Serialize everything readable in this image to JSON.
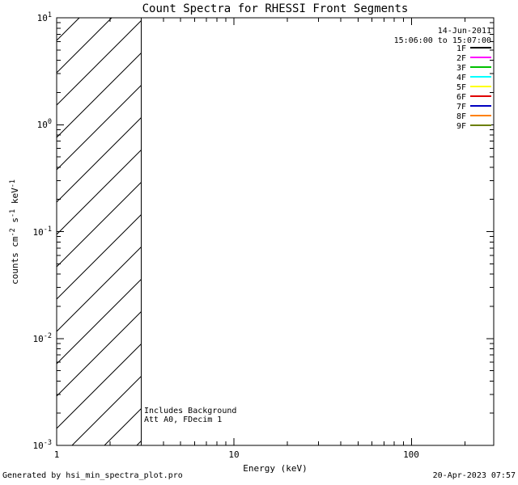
{
  "title": "Count Spectra for RHESSI Front Segments",
  "axes": {
    "x_label": "Energy (keV)",
    "x_ticks": [
      "1",
      "10",
      "100"
    ],
    "y_ticks": [
      {
        "base": "10",
        "exp": "1"
      },
      {
        "base": "10",
        "exp": "0"
      },
      {
        "base": "10",
        "exp": "-1"
      },
      {
        "base": "10",
        "exp": "-2"
      },
      {
        "base": "10",
        "exp": "-3"
      }
    ],
    "y_label_parts": {
      "p0": "counts cm",
      "s0": "-2",
      "p1": " s",
      "s1": "-1",
      "p2": " keV",
      "s2": "-1"
    }
  },
  "legend": {
    "date": "14-Jun-2011",
    "time_range": "15:06:00 to 15:07:00",
    "entries": [
      {
        "label": "1F",
        "color": "#000000"
      },
      {
        "label": "2F",
        "color": "#ff00ff"
      },
      {
        "label": "3F",
        "color": "#00c000"
      },
      {
        "label": "4F",
        "color": "#00ffff"
      },
      {
        "label": "5F",
        "color": "#ffff00"
      },
      {
        "label": "6F",
        "color": "#e00000"
      },
      {
        "label": "7F",
        "color": "#0000c0"
      },
      {
        "label": "8F",
        "color": "#ff8000"
      },
      {
        "label": "9F",
        "color": "#6b7f00"
      }
    ]
  },
  "annotations": {
    "line1": "Includes Background",
    "line2": "Att A0, FDecim 1"
  },
  "footer": {
    "left": "Generated by hsi_min_spectra_plot.pro",
    "right": "20-Apr-2023 07:57"
  },
  "chart_data": {
    "type": "line",
    "title": "Count Spectra for RHESSI Front Segments",
    "xlabel": "Energy (keV)",
    "ylabel": "counts cm^-2 s^-1 keV^-1",
    "x_scale": "log",
    "y_scale": "log",
    "xlim": [
      1,
      300
    ],
    "ylim": [
      0.001,
      10
    ],
    "x_ticks": [
      1,
      10,
      100
    ],
    "y_ticks": [
      0.001,
      0.01,
      0.1,
      1,
      10
    ],
    "grid": false,
    "legend_position": "upper right",
    "series": [],
    "hatched_region": {
      "x_start": 1,
      "x_end": 3,
      "y_min": 0.001,
      "y_max": 10,
      "style": "diagonal-hatch"
    },
    "annotations": [
      "Includes Background",
      "Att A0, FDecim 1"
    ],
    "time_interval": "14-Jun-2011 15:06:00 to 15:07:00",
    "detector_segments": [
      "1F",
      "2F",
      "3F",
      "4F",
      "5F",
      "6F",
      "7F",
      "8F",
      "9F"
    ]
  }
}
